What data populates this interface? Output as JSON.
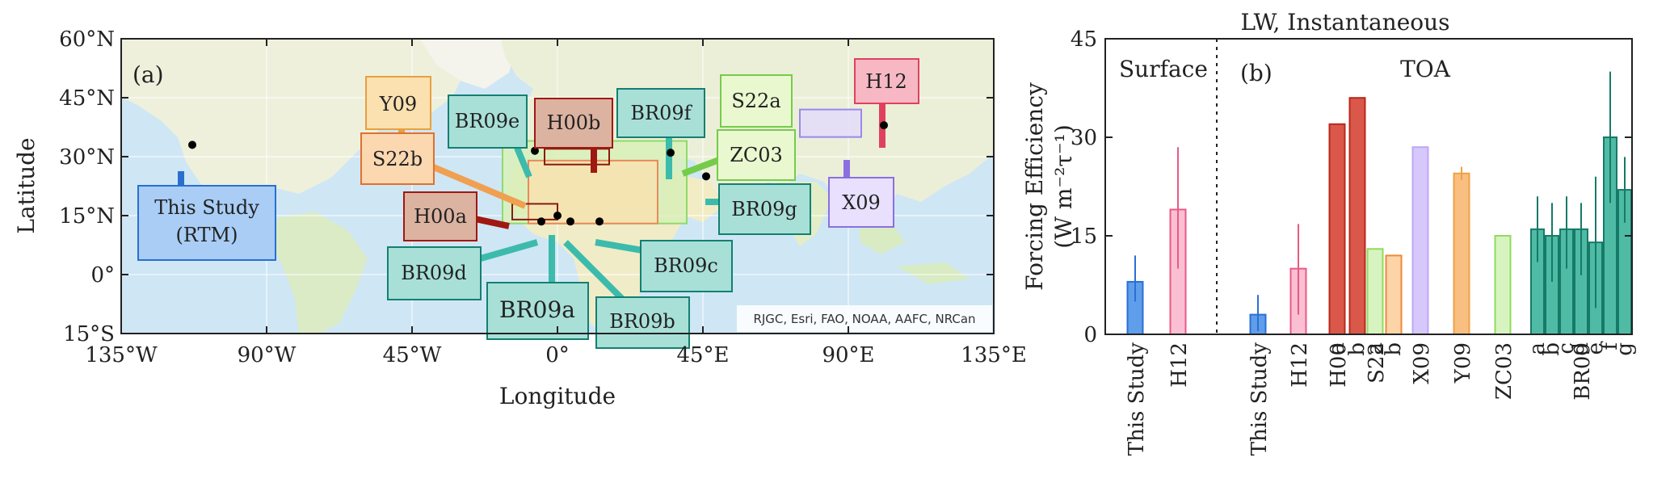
{
  "chart_data": [
    {
      "type": "map",
      "panel_label": "(a)",
      "xlabel": "Longitude",
      "ylabel": "Latitude",
      "xlim": [
        -135,
        135
      ],
      "ylim": [
        -15,
        60
      ],
      "xticks": [
        {
          "value": -135,
          "label": "135°W"
        },
        {
          "value": -90,
          "label": "90°W"
        },
        {
          "value": -45,
          "label": "45°W"
        },
        {
          "value": 0,
          "label": "0°"
        },
        {
          "value": 45,
          "label": "45°E"
        },
        {
          "value": 90,
          "label": "90°E"
        },
        {
          "value": 135,
          "label": "135°E"
        }
      ],
      "yticks": [
        {
          "value": 60,
          "label": "60°N"
        },
        {
          "value": 45,
          "label": "45°N"
        },
        {
          "value": 30,
          "label": "30°N"
        },
        {
          "value": 15,
          "label": "15°N"
        },
        {
          "value": 0,
          "label": "0°"
        },
        {
          "value": -15,
          "label": "15°S"
        }
      ],
      "attribution": "RJGC, Esri, FAO, NOAA, AAFC, NRCan",
      "regions": [
        {
          "name": "S22a/ZC03 region",
          "lon": [
            -17,
            40
          ],
          "lat": [
            13,
            34
          ],
          "fill": "#d8f0b8",
          "stroke": "#8ddc6a"
        },
        {
          "name": "BR09 region",
          "lon": [
            -9,
            31
          ],
          "lat": [
            13,
            29
          ],
          "fill": "#f8e2b0",
          "stroke": "#e88a5a"
        },
        {
          "name": "H00b region",
          "lon": [
            -4,
            16
          ],
          "lat": [
            28,
            32
          ],
          "fill": "none",
          "stroke": "#8a1a10"
        },
        {
          "name": "H00a region",
          "lon": [
            -14,
            0
          ],
          "lat": [
            14,
            18
          ],
          "fill": "none",
          "stroke": "#8a1a10"
        },
        {
          "name": "X09 region",
          "lon": [
            75,
            94
          ],
          "lat": [
            35,
            42
          ],
          "fill": "#e4dcfc",
          "stroke": "#9a88ee"
        }
      ],
      "sites": [
        {
          "name": "This Study",
          "lon": -113,
          "lat": 33
        },
        {
          "name": "H12",
          "lon": 101,
          "lat": 38
        },
        {
          "name": "ZC03",
          "lon": 35,
          "lat": 31
        },
        {
          "name": "BR09e",
          "lon": -7,
          "lat": 31.5
        },
        {
          "name": "BR09g",
          "lon": 46,
          "lat": 25
        },
        {
          "name": "BR09d",
          "lon": -5,
          "lat": 13.5
        },
        {
          "name": "BR09a",
          "lon": 0,
          "lat": 15
        },
        {
          "name": "BR09b",
          "lon": 4,
          "lat": 13.5
        },
        {
          "name": "BR09c",
          "lon": 13,
          "lat": 13.5
        }
      ],
      "labels": [
        {
          "text": "This Study\n(RTM)",
          "color": "#2a6fd0",
          "fill": "#a9cdf5"
        },
        {
          "text": "Y09",
          "color": "#e8a040",
          "fill": "#fbe0b0"
        },
        {
          "text": "S22b",
          "color": "#e07030",
          "fill": "#fbd8b0"
        },
        {
          "text": "H00a",
          "color": "#a01812",
          "fill": "#dcb2a0"
        },
        {
          "text": "BR09e",
          "color": "#138070",
          "fill": "#a8e0d8"
        },
        {
          "text": "H00b",
          "color": "#a01812",
          "fill": "#dcb2a0"
        },
        {
          "text": "BR09f",
          "color": "#138070",
          "fill": "#a8e0d8"
        },
        {
          "text": "S22a",
          "color": "#74cc4a",
          "fill": "#eaf8d0"
        },
        {
          "text": "ZC03",
          "color": "#74cc4a",
          "fill": "#eaf8d0"
        },
        {
          "text": "H12",
          "color": "#e04060",
          "fill": "#f7b8c4"
        },
        {
          "text": "X09",
          "color": "#8a70e0",
          "fill": "#e8e0fc"
        },
        {
          "text": "BR09g",
          "color": "#138070",
          "fill": "#a8e0d8"
        },
        {
          "text": "BR09d",
          "color": "#138070",
          "fill": "#a8e0d8"
        },
        {
          "text": "BR09a",
          "color": "#138070",
          "fill": "#a8e0d8"
        },
        {
          "text": "BR09b",
          "color": "#138070",
          "fill": "#a8e0d8"
        },
        {
          "text": "BR09c",
          "color": "#138070",
          "fill": "#a8e0d8"
        }
      ]
    },
    {
      "type": "bar",
      "title": "LW, Instantaneous",
      "panel_label": "(b)",
      "ylabel_line1": "Forcing Efficiency",
      "ylabel_line2": "(W m⁻²τ⁻¹)",
      "ylim": [
        0,
        45
      ],
      "yticks": [
        0,
        15,
        30,
        45
      ],
      "sections": [
        "Surface",
        "TOA"
      ],
      "section_divider_after": 2,
      "bars": [
        {
          "name": "This Study",
          "section": "Surface",
          "value": 8,
          "err": [
            5,
            12
          ],
          "color": "#2b6fd3",
          "fill": "#5f9eeb"
        },
        {
          "name": "H12",
          "section": "Surface",
          "value": 19,
          "err": [
            10,
            28.5
          ],
          "color": "#e85a84",
          "fill": "#fbbfd3"
        },
        {
          "name": "This Study",
          "section": "TOA",
          "value": 3,
          "err": [
            0.5,
            6
          ],
          "color": "#2b6fd3",
          "fill": "#5f9eeb"
        },
        {
          "name": "H12",
          "section": "TOA",
          "value": 10,
          "err": [
            3,
            16.8
          ],
          "color": "#e85a84",
          "fill": "#fbbfd3"
        },
        {
          "name": "H00a",
          "section": "TOA",
          "value": 32,
          "err": null,
          "color": "#b8281e",
          "fill": "#d9584a"
        },
        {
          "name": "H00b",
          "section": "TOA",
          "value": 36,
          "err": null,
          "color": "#b8281e",
          "fill": "#d9584a"
        },
        {
          "name": "S22a",
          "section": "TOA",
          "value": 13,
          "err": null,
          "color": "#8edc5c",
          "fill": "#d7f4c0"
        },
        {
          "name": "S22b",
          "section": "TOA",
          "value": 12,
          "err": null,
          "color": "#f08a38",
          "fill": "#fcd4a8"
        },
        {
          "name": "X09",
          "section": "TOA",
          "value": 28.5,
          "err": null,
          "color": "#bca8f6",
          "fill": "#d6c8fb"
        },
        {
          "name": "Y09",
          "section": "TOA",
          "value": 24.5,
          "err": [
            23.5,
            25.5
          ],
          "color": "#f0a048",
          "fill": "#f8bf80"
        },
        {
          "name": "ZC03",
          "section": "TOA",
          "value": 15,
          "err": null,
          "color": "#8edc5c",
          "fill": "#d7f4c0"
        },
        {
          "name": "BR09a",
          "section": "TOA",
          "value": 16,
          "err": [
            11,
            21
          ],
          "color": "#167a68",
          "fill": "#4fbba5"
        },
        {
          "name": "BR09b",
          "section": "TOA",
          "value": 15,
          "err": [
            8,
            20
          ],
          "color": "#167a68",
          "fill": "#4fbba5"
        },
        {
          "name": "BR09c",
          "section": "TOA",
          "value": 16,
          "err": [
            10,
            21
          ],
          "color": "#167a68",
          "fill": "#4fbba5"
        },
        {
          "name": "BR09d",
          "section": "TOA",
          "value": 16,
          "err": [
            9,
            20
          ],
          "color": "#167a68",
          "fill": "#4fbba5"
        },
        {
          "name": "BR09e",
          "section": "TOA",
          "value": 14,
          "err": [
            4,
            24
          ],
          "color": "#167a68",
          "fill": "#4fbba5"
        },
        {
          "name": "BR09f",
          "section": "TOA",
          "value": 30,
          "err": [
            20,
            40
          ],
          "color": "#167a68",
          "fill": "#4fbba5"
        },
        {
          "name": "BR09g",
          "section": "TOA",
          "value": 22,
          "err": [
            17,
            27
          ],
          "color": "#167a68",
          "fill": "#4fbba5"
        }
      ],
      "xtick_labels": [
        {
          "text": "This Study",
          "bar": 0
        },
        {
          "text": "H12",
          "bar": 1
        },
        {
          "text": "This Study",
          "bar": 2
        },
        {
          "text": "H12",
          "bar": 3
        },
        {
          "text": "H00",
          "bar": 4
        },
        {
          "text": "a",
          "bar": 4
        },
        {
          "text": "b",
          "bar": 5
        },
        {
          "text": "S22",
          "bar": 6
        },
        {
          "text": "a",
          "bar": 6
        },
        {
          "text": "b",
          "bar": 7
        },
        {
          "text": "X09",
          "bar": 8
        },
        {
          "text": "Y09",
          "bar": 9
        },
        {
          "text": "ZC03",
          "bar": 10
        },
        {
          "text": "a",
          "bar": 11
        },
        {
          "text": "b",
          "bar": 12
        },
        {
          "text": "BR09",
          "bar": 14
        },
        {
          "text": "c",
          "bar": 13
        },
        {
          "text": "d",
          "bar": 14
        },
        {
          "text": "e",
          "bar": 15
        },
        {
          "text": "f",
          "bar": 16
        },
        {
          "text": "g",
          "bar": 17
        }
      ]
    }
  ]
}
